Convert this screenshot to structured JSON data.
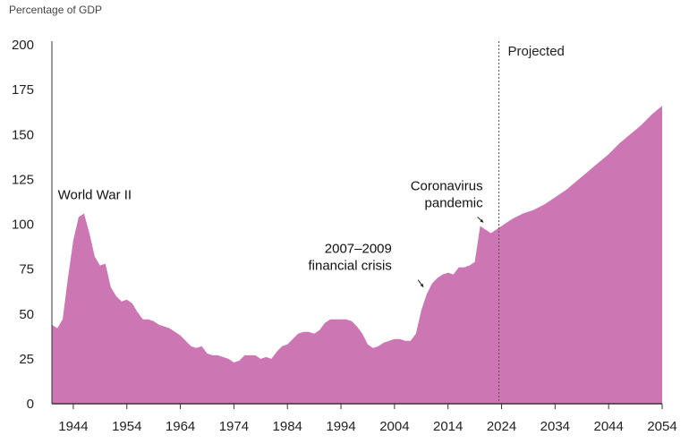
{
  "chart_data": {
    "type": "area",
    "title": "",
    "ylabel": "Percentage of GDP",
    "xlabel": "",
    "xlim": [
      1940,
      2054
    ],
    "ylim": [
      0,
      200
    ],
    "yticks": [
      0,
      25,
      50,
      75,
      100,
      125,
      150,
      175,
      200
    ],
    "xticks": [
      1944,
      1954,
      1964,
      1974,
      1984,
      1994,
      2004,
      2014,
      2024,
      2034,
      2044,
      2054
    ],
    "projection_start": 2023.5,
    "projection_label": "Projected",
    "colors": {
      "area": "#cc77b3",
      "axis": "#333333",
      "divider": "#555555"
    },
    "annotations": [
      {
        "id": "ww2",
        "lines": [
          "World War II"
        ],
        "x": 1948,
        "y": 114
      },
      {
        "id": "fin",
        "lines": [
          "2007–2009",
          "financial crisis"
        ],
        "x": 2003.5,
        "y": 84
      },
      {
        "id": "covid",
        "lines": [
          "Coronavirus",
          "pandemic"
        ],
        "x": 2020.5,
        "y": 119
      }
    ],
    "series": [
      {
        "x": [
          1940,
          1941,
          1942,
          1943,
          1944,
          1945,
          1946,
          1947,
          1948,
          1949,
          1950,
          1951,
          1952,
          1953,
          1954,
          1955,
          1956,
          1957,
          1958,
          1959,
          1960,
          1961,
          1962,
          1963,
          1964,
          1965,
          1966,
          1967,
          1968,
          1969,
          1970,
          1971,
          1972,
          1973,
          1974,
          1975,
          1976,
          1977,
          1978,
          1979,
          1980,
          1981,
          1982,
          1983,
          1984,
          1985,
          1986,
          1987,
          1988,
          1989,
          1990,
          1991,
          1992,
          1993,
          1994,
          1995,
          1996,
          1997,
          1998,
          1999,
          2000,
          2001,
          2002,
          2003,
          2004,
          2005,
          2006,
          2007,
          2008,
          2009,
          2010,
          2011,
          2012,
          2013,
          2014,
          2015,
          2016,
          2017,
          2018,
          2019,
          2020,
          2021,
          2022,
          2023,
          2024,
          2026,
          2028,
          2030,
          2032,
          2034,
          2036,
          2038,
          2040,
          2042,
          2044,
          2046,
          2048,
          2050,
          2052,
          2054
        ],
        "values": [
          44,
          42,
          47,
          70,
          91,
          104,
          106,
          95,
          82,
          77,
          78,
          65,
          60,
          57,
          58,
          56,
          51,
          47,
          47,
          46,
          44,
          43,
          42,
          40,
          38,
          35,
          32,
          31,
          32,
          28,
          27,
          27,
          26,
          25,
          23,
          24,
          27,
          27,
          27,
          25,
          26,
          25,
          29,
          32,
          33,
          36,
          39,
          40,
          40,
          39,
          41,
          45,
          47,
          47,
          47,
          47,
          46,
          43,
          39,
          33,
          31,
          32,
          34,
          35,
          36,
          36,
          35,
          35,
          39,
          52,
          61,
          67,
          70,
          72,
          73,
          72,
          76,
          76,
          77,
          79,
          99,
          97,
          95,
          97,
          99,
          103,
          106,
          108,
          111,
          115,
          119,
          124,
          129,
          134,
          139,
          145,
          150,
          155,
          161,
          166
        ]
      }
    ]
  }
}
